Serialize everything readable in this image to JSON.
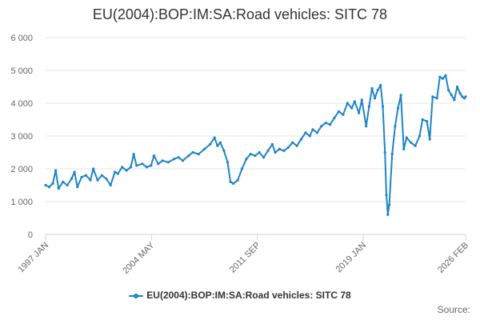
{
  "title": "EU(2004):BOP:IM:SA:Road vehicles: SITC 78",
  "legend_label": "EU(2004):BOP:IM:SA:Road vehicles: SITC 78",
  "credits": "Source:",
  "colors": {
    "series": "#1f84c6",
    "grid": "#e6e6e6",
    "axis": "#ccd6eb"
  },
  "chart_data": {
    "type": "line",
    "title": "EU(2004):BOP:IM:SA:Road vehicles: SITC 78",
    "xlabel": "",
    "ylabel": "",
    "ylim": [
      0,
      6000
    ],
    "y_ticks": [
      0,
      1000,
      2000,
      3000,
      4000,
      5000,
      6000
    ],
    "y_tick_labels": [
      "0",
      "1 000",
      "2 000",
      "3 000",
      "4 000",
      "5 000",
      "6 000"
    ],
    "x_range": [
      1997.0,
      2026.083
    ],
    "x_ticks": [
      1997.0,
      2004.333,
      2011.667,
      2019.0,
      2026.083
    ],
    "x_tick_labels": [
      "1997 JAN",
      "2004 MAY",
      "2011 SEP",
      "2019 JAN",
      "2026 FEB"
    ],
    "legend": [
      "EU(2004):BOP:IM:SA:Road vehicles: SITC 78"
    ],
    "series": [
      {
        "name": "EU(2004):BOP:IM:SA:Road vehicles: SITC 78",
        "points": [
          [
            1997.0,
            1500
          ],
          [
            1997.25,
            1450
          ],
          [
            1997.5,
            1550
          ],
          [
            1997.7,
            1950
          ],
          [
            1997.9,
            1400
          ],
          [
            1998.2,
            1600
          ],
          [
            1998.5,
            1500
          ],
          [
            1998.8,
            1700
          ],
          [
            1999.0,
            1900
          ],
          [
            1999.2,
            1450
          ],
          [
            1999.5,
            1750
          ],
          [
            1999.8,
            1800
          ],
          [
            2000.1,
            1650
          ],
          [
            2000.3,
            2000
          ],
          [
            2000.6,
            1650
          ],
          [
            2000.9,
            1800
          ],
          [
            2001.2,
            1700
          ],
          [
            2001.5,
            1500
          ],
          [
            2001.8,
            1900
          ],
          [
            2002.0,
            1850
          ],
          [
            2002.3,
            2050
          ],
          [
            2002.6,
            1950
          ],
          [
            2002.9,
            2050
          ],
          [
            2003.1,
            2450
          ],
          [
            2003.3,
            2100
          ],
          [
            2003.7,
            2150
          ],
          [
            2004.0,
            2050
          ],
          [
            2004.3,
            2100
          ],
          [
            2004.5,
            2400
          ],
          [
            2004.8,
            2150
          ],
          [
            2005.1,
            2250
          ],
          [
            2005.5,
            2200
          ],
          [
            2005.9,
            2300
          ],
          [
            2006.2,
            2350
          ],
          [
            2006.5,
            2250
          ],
          [
            2006.9,
            2400
          ],
          [
            2007.2,
            2500
          ],
          [
            2007.6,
            2450
          ],
          [
            2008.0,
            2600
          ],
          [
            2008.4,
            2750
          ],
          [
            2008.7,
            2950
          ],
          [
            2008.9,
            2700
          ],
          [
            2009.1,
            2800
          ],
          [
            2009.35,
            2550
          ],
          [
            2009.6,
            2200
          ],
          [
            2009.8,
            1600
          ],
          [
            2010.0,
            1550
          ],
          [
            2010.3,
            1650
          ],
          [
            2010.6,
            2000
          ],
          [
            2010.9,
            2300
          ],
          [
            2011.2,
            2450
          ],
          [
            2011.5,
            2400
          ],
          [
            2011.8,
            2500
          ],
          [
            2012.1,
            2350
          ],
          [
            2012.4,
            2550
          ],
          [
            2012.7,
            2750
          ],
          [
            2012.9,
            2500
          ],
          [
            2013.2,
            2600
          ],
          [
            2013.5,
            2550
          ],
          [
            2013.8,
            2650
          ],
          [
            2014.1,
            2800
          ],
          [
            2014.4,
            2700
          ],
          [
            2014.7,
            2900
          ],
          [
            2015.0,
            3100
          ],
          [
            2015.3,
            3000
          ],
          [
            2015.5,
            3200
          ],
          [
            2015.8,
            3100
          ],
          [
            2016.1,
            3300
          ],
          [
            2016.4,
            3400
          ],
          [
            2016.7,
            3350
          ],
          [
            2017.0,
            3550
          ],
          [
            2017.3,
            3750
          ],
          [
            2017.6,
            3650
          ],
          [
            2017.9,
            4000
          ],
          [
            2018.2,
            3850
          ],
          [
            2018.4,
            4050
          ],
          [
            2018.7,
            3700
          ],
          [
            2018.9,
            4100
          ],
          [
            2019.2,
            3300
          ],
          [
            2019.4,
            3900
          ],
          [
            2019.6,
            4450
          ],
          [
            2019.8,
            4150
          ],
          [
            2020.0,
            4400
          ],
          [
            2020.2,
            4550
          ],
          [
            2020.35,
            3900
          ],
          [
            2020.5,
            2500
          ],
          [
            2020.6,
            1200
          ],
          [
            2020.7,
            600
          ],
          [
            2020.8,
            900
          ],
          [
            2021.0,
            2450
          ],
          [
            2021.2,
            3300
          ],
          [
            2021.4,
            3850
          ],
          [
            2021.6,
            4250
          ],
          [
            2021.8,
            2600
          ],
          [
            2022.0,
            2950
          ],
          [
            2022.3,
            2800
          ],
          [
            2022.6,
            2700
          ],
          [
            2022.9,
            3000
          ],
          [
            2023.1,
            3500
          ],
          [
            2023.4,
            3450
          ],
          [
            2023.6,
            2900
          ],
          [
            2023.8,
            4200
          ],
          [
            2024.1,
            4150
          ],
          [
            2024.3,
            4800
          ],
          [
            2024.5,
            4750
          ],
          [
            2024.7,
            4850
          ],
          [
            2024.9,
            4400
          ],
          [
            2025.1,
            4250
          ],
          [
            2025.3,
            4100
          ],
          [
            2025.5,
            4500
          ],
          [
            2025.7,
            4300
          ],
          [
            2025.85,
            4200
          ],
          [
            2026.0,
            4150
          ],
          [
            2026.083,
            4200
          ]
        ]
      }
    ]
  }
}
